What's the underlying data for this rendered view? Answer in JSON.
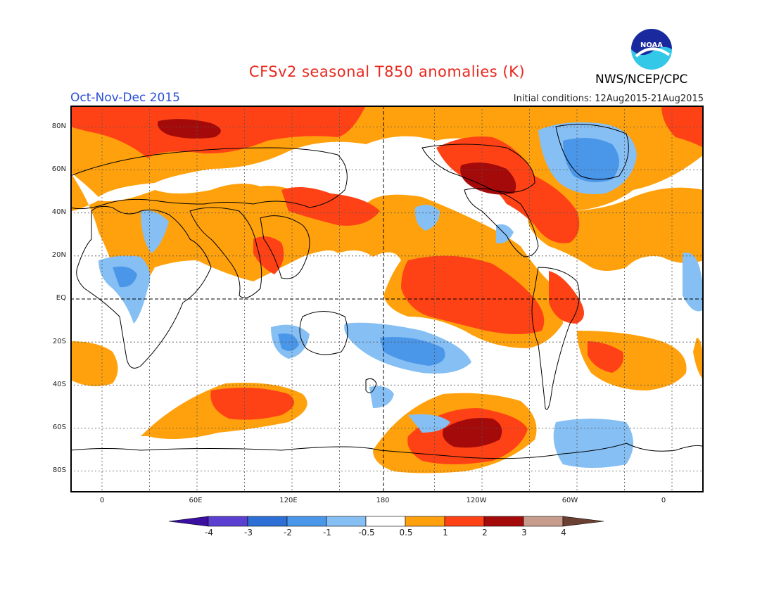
{
  "header": {
    "title": "CFSv2 seasonal T850 anomalies (K)",
    "season": "Oct-Nov-Dec 2015",
    "initial_conditions": "Initial conditions: 12Aug2015-21Aug2015",
    "agency": "NWS/NCEP/CPC",
    "logo_text": "NOAA"
  },
  "map": {
    "projection": "cylindrical equidistant",
    "lat_range": [
      -90,
      90
    ],
    "lon_range": [
      -20,
      380
    ],
    "lat_labels": [
      "80N",
      "60N",
      "40N",
      "20N",
      "EQ",
      "20S",
      "40S",
      "60S",
      "80S"
    ],
    "lon_labels": [
      "0",
      "60E",
      "120E",
      "180",
      "120W",
      "60W",
      "0"
    ]
  },
  "colorbar": {
    "labels": [
      "-4",
      "-3",
      "-2",
      "-1",
      "-0.5",
      "0.5",
      "1",
      "2",
      "3",
      "4"
    ],
    "colors": [
      "#3b0fa0",
      "#5a3fd0",
      "#2e6fd6",
      "#4a97ea",
      "#86bff3",
      "#ffffff",
      "#ffa10c",
      "#ff4216",
      "#a50a0a",
      "#c79c8c",
      "#6b4033"
    ]
  }
}
